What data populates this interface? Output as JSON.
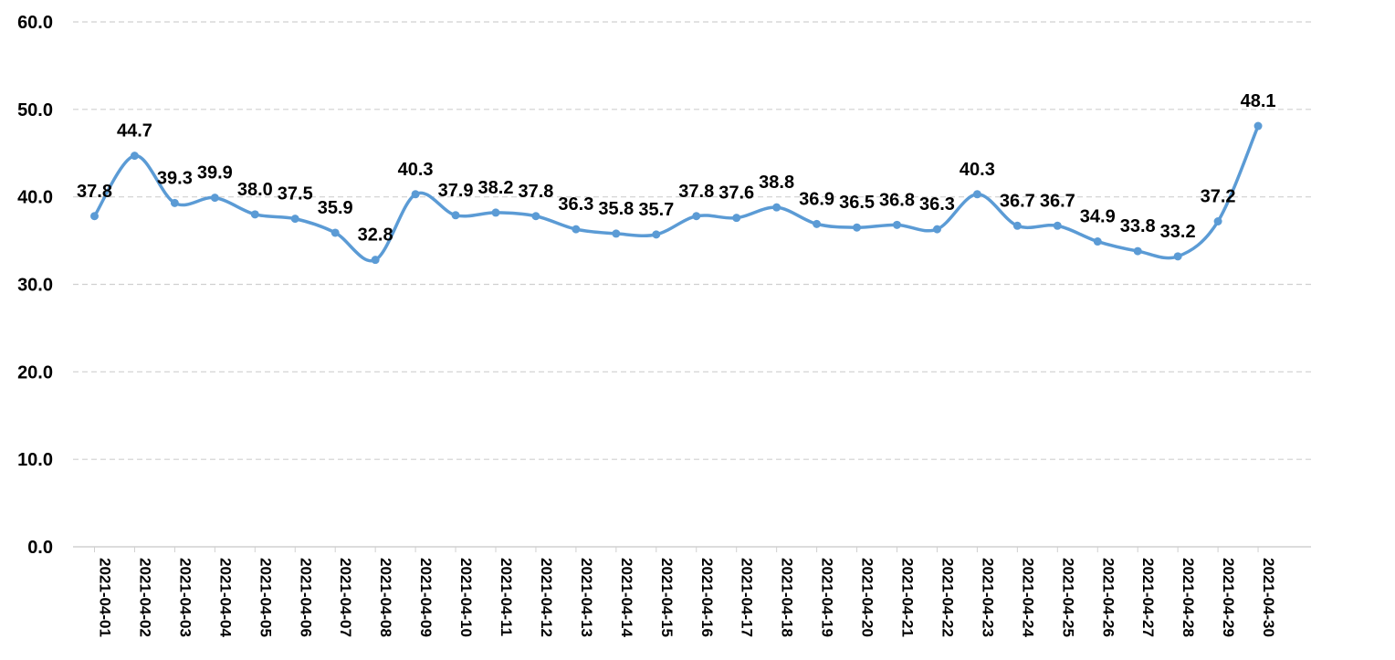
{
  "chart_data": {
    "type": "line",
    "title": "",
    "xlabel": "",
    "ylabel": "",
    "ylim": [
      0,
      60
    ],
    "yticks": [
      "0.0",
      "10.0",
      "20.0",
      "30.0",
      "40.0",
      "50.0",
      "60.0"
    ],
    "grid": "horizontal-dashed",
    "legend": "none",
    "colors": {
      "line": "#5b9bd5",
      "grid": "#d0d0d0",
      "axis": "#d0d0d0"
    },
    "x": [
      "2021-04-01",
      "2021-04-02",
      "2021-04-03",
      "2021-04-04",
      "2021-04-05",
      "2021-04-06",
      "2021-04-07",
      "2021-04-08",
      "2021-04-09",
      "2021-04-10",
      "2021-04-11",
      "2021-04-12",
      "2021-04-13",
      "2021-04-14",
      "2021-04-15",
      "2021-04-16",
      "2021-04-17",
      "2021-04-18",
      "2021-04-19",
      "2021-04-20",
      "2021-04-21",
      "2021-04-22",
      "2021-04-23",
      "2021-04-24",
      "2021-04-25",
      "2021-04-26",
      "2021-04-27",
      "2021-04-28",
      "2021-04-29",
      "2021-04-30"
    ],
    "series": [
      {
        "values": [
          37.8,
          44.7,
          39.3,
          39.9,
          38.0,
          37.5,
          35.9,
          32.8,
          40.3,
          37.9,
          38.2,
          37.8,
          36.3,
          35.8,
          35.7,
          37.8,
          37.6,
          38.8,
          36.9,
          36.5,
          36.8,
          36.3,
          40.3,
          36.7,
          36.7,
          34.9,
          33.8,
          33.2,
          37.2,
          48.1
        ],
        "labels": [
          "37.8",
          "44.7",
          "39.3",
          "39.9",
          "38.0",
          "37.5",
          "35.9",
          "32.8",
          "40.3",
          "37.9",
          "38.2",
          "37.8",
          "36.3",
          "35.8",
          "35.7",
          "37.8",
          "37.6",
          "38.8",
          "36.9",
          "36.5",
          "36.8",
          "36.3",
          "40.3",
          "36.7",
          "36.7",
          "34.9",
          "33.8",
          "33.2",
          "37.2",
          "48.1"
        ]
      }
    ]
  }
}
